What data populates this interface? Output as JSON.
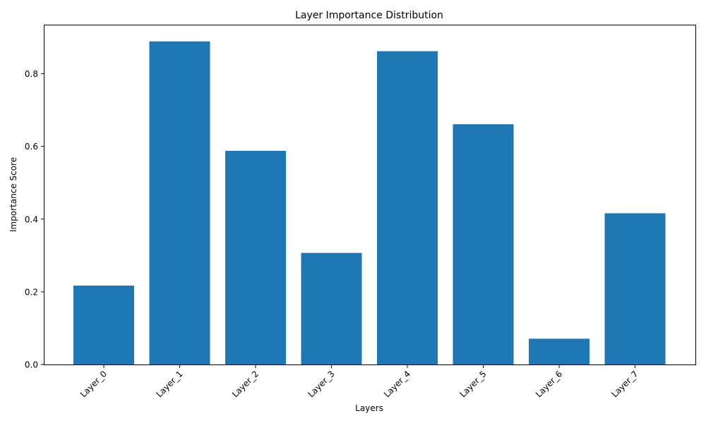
{
  "chart_data": {
    "type": "bar",
    "title": "Layer Importance Distribution",
    "xlabel": "Layers",
    "ylabel": "Importance Score",
    "categories": [
      "Layer_0",
      "Layer_1",
      "Layer_2",
      "Layer_3",
      "Layer_4",
      "Layer_5",
      "Layer_6",
      "Layer_7"
    ],
    "values": [
      0.217,
      0.889,
      0.588,
      0.307,
      0.862,
      0.661,
      0.071,
      0.416
    ],
    "ylim": [
      0,
      0.933
    ],
    "yticks": [
      0.0,
      0.2,
      0.4,
      0.6,
      0.8
    ],
    "ytick_labels": [
      "0.0",
      "0.2",
      "0.4",
      "0.6",
      "0.8"
    ],
    "bar_color": "#1f77b4",
    "grid": false,
    "xtick_rotation_deg": 45
  }
}
